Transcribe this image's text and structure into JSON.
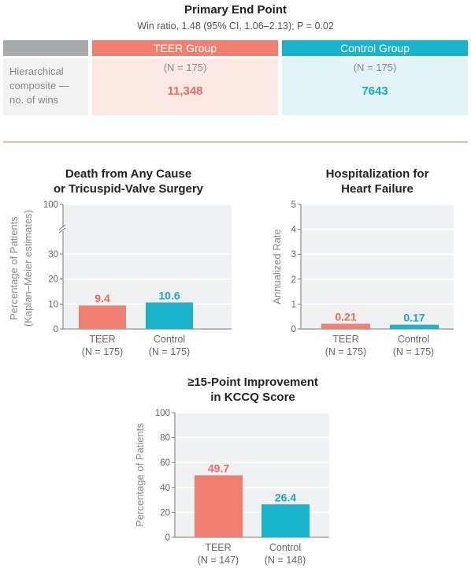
{
  "primary": {
    "title": "Primary End Point",
    "subtitle": "Win ratio, 1.48 (95% CI, 1.06–2.13); P = 0.02",
    "teer_header": "TEER Group",
    "control_header": "Control Group",
    "row_label_lines": [
      "Hierarchical",
      "composite —",
      "no. of wins"
    ],
    "teer_n": "(N = 175)",
    "control_n": "(N = 175)",
    "teer_wins": "11,348",
    "control_wins": "7643"
  },
  "colors": {
    "teer": "#f07f72",
    "control": "#1ab3cc",
    "teer_text": "#ea6a5c",
    "control_text": "#1aa9c1"
  },
  "chart_data": [
    {
      "type": "bar",
      "id": "death",
      "title_lines": [
        "Death from Any Cause",
        "or Tricuspid-Valve Surgery"
      ],
      "ylabel_lines": [
        "Percentage of Patients",
        "(Kaplan–Meier estimates)"
      ],
      "yticks": [
        0,
        10,
        20,
        30,
        100
      ],
      "axis_break": true,
      "categories": [
        [
          "TEER",
          "(N = 175)"
        ],
        [
          "Control",
          "(N = 175)"
        ]
      ],
      "values": [
        9.4,
        10.6
      ],
      "value_labels": [
        "9.4",
        "10.6"
      ],
      "ylim": [
        0,
        100
      ]
    },
    {
      "type": "bar",
      "id": "hosp",
      "title_lines": [
        "Hospitalization for",
        "Heart Failure"
      ],
      "ylabel_lines": [
        "Annualized Rate"
      ],
      "yticks": [
        0,
        1,
        2,
        3,
        4,
        5
      ],
      "axis_break": false,
      "categories": [
        [
          "TEER",
          "(N = 175)"
        ],
        [
          "Control",
          "(N = 175)"
        ]
      ],
      "values": [
        0.21,
        0.17
      ],
      "value_labels": [
        "0.21",
        "0.17"
      ],
      "ylim": [
        0,
        5
      ]
    },
    {
      "type": "bar",
      "id": "kccq",
      "title_lines": [
        "≥15-Point Improvement",
        "in KCCQ Score"
      ],
      "ylabel_lines": [
        "Percentage of Patients"
      ],
      "yticks": [
        0,
        20,
        40,
        60,
        80,
        100
      ],
      "axis_break": false,
      "categories": [
        [
          "TEER",
          "(N = 147)"
        ],
        [
          "Control",
          "(N = 148)"
        ]
      ],
      "values": [
        49.7,
        26.4
      ],
      "value_labels": [
        "49.7",
        "26.4"
      ],
      "ylim": [
        0,
        100
      ]
    }
  ]
}
